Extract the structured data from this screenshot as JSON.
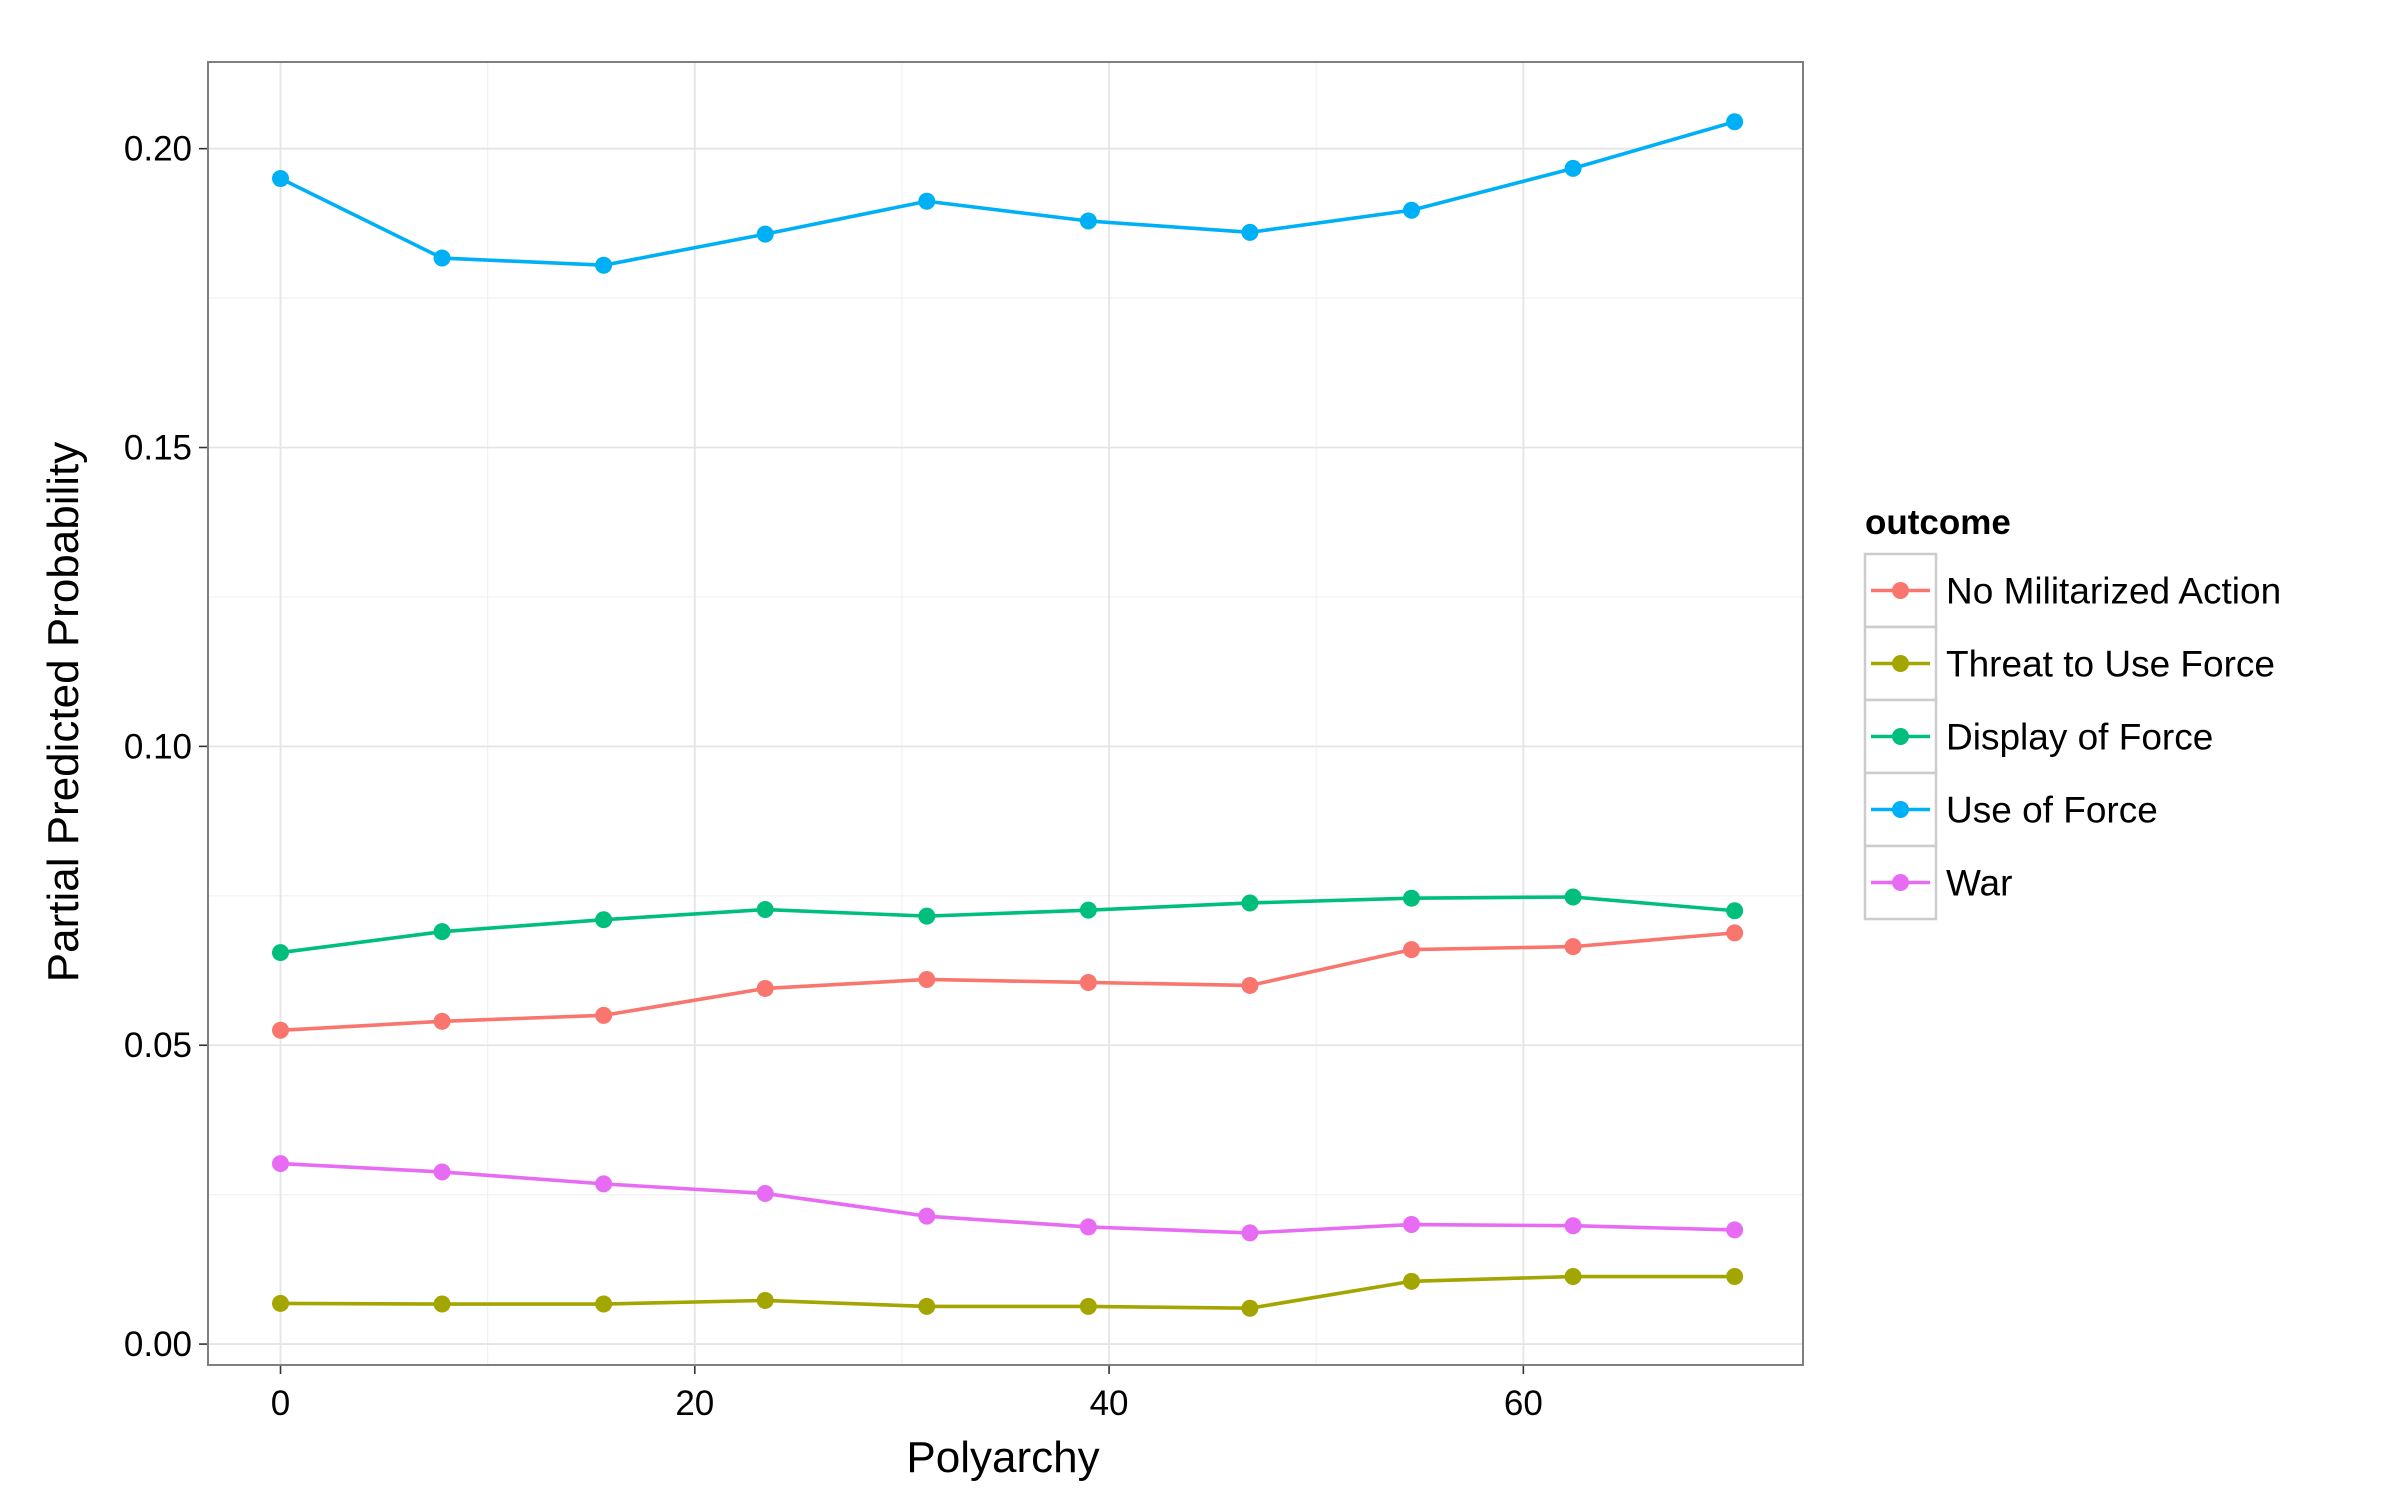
{
  "chart_data": {
    "type": "line",
    "title": "",
    "xlabel": "Polyarchy",
    "ylabel": "Partial Predicted Probability",
    "xlim": [
      -3.5,
      73.5
    ],
    "ylim": [
      -0.0035,
      0.2145
    ],
    "x_ticks": [
      0,
      20,
      40,
      60
    ],
    "x_tick_labels": [
      "0",
      "20",
      "40",
      "60"
    ],
    "y_ticks": [
      0.0,
      0.05,
      0.1,
      0.15,
      0.2
    ],
    "y_tick_labels": [
      "0.00",
      "0.05",
      "0.10",
      "0.15",
      "0.20"
    ],
    "grid": true,
    "legend": {
      "title": "outcome",
      "placement": "right"
    },
    "x": [
      0,
      7.8,
      15.6,
      23.4,
      31.2,
      39,
      46.8,
      54.6,
      62.4,
      70.2
    ],
    "series": [
      {
        "name": "No Militarized Action",
        "color": "#F8766D",
        "values": [
          0.0525,
          0.054,
          0.055,
          0.0595,
          0.061,
          0.0605,
          0.06,
          0.066,
          0.0665,
          0.0688
        ]
      },
      {
        "name": "Threat to Use Force",
        "color": "#A3A500",
        "values": [
          0.0068,
          0.0067,
          0.0067,
          0.0073,
          0.0063,
          0.0063,
          0.006,
          0.0105,
          0.0113,
          0.0113
        ]
      },
      {
        "name": "Display of Force",
        "color": "#00BF7D",
        "values": [
          0.0655,
          0.069,
          0.071,
          0.0727,
          0.0716,
          0.0726,
          0.0738,
          0.0746,
          0.0748,
          0.0725
        ]
      },
      {
        "name": "Use of Force",
        "color": "#00B0F6",
        "values": [
          0.195,
          0.1817,
          0.1805,
          0.1857,
          0.1912,
          0.1879,
          0.186,
          0.1897,
          0.1967,
          0.2045
        ]
      },
      {
        "name": "War",
        "color": "#E76BF3",
        "values": [
          0.0302,
          0.0288,
          0.0268,
          0.0252,
          0.0214,
          0.0196,
          0.0186,
          0.02,
          0.0198,
          0.0191
        ]
      }
    ]
  }
}
